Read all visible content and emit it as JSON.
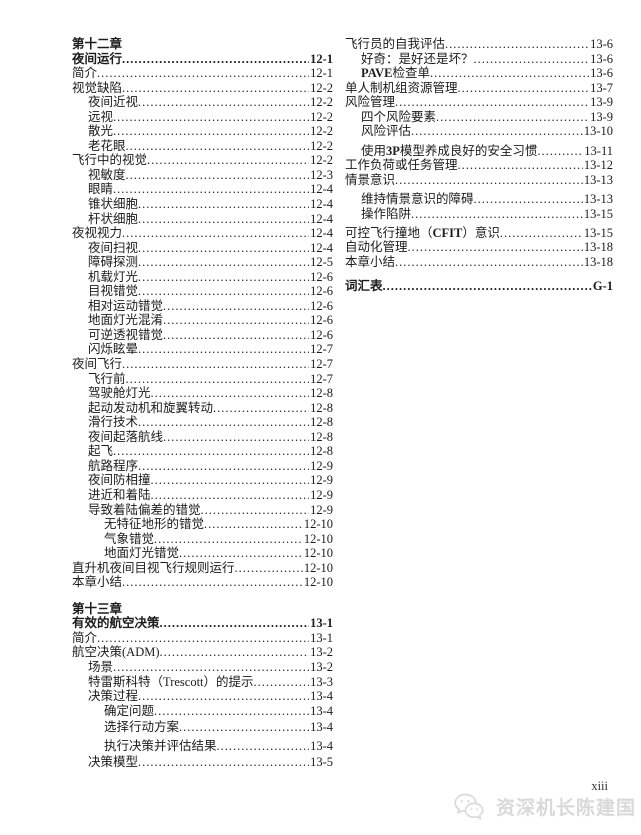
{
  "page": {
    "page_number": "xiii",
    "watermark": {
      "icon": "wechat-icon",
      "text": "资深机长陈建国"
    },
    "colors": {
      "text": "#1c1c1c",
      "watermark": "#d9d9d9",
      "background": "#ffffff"
    }
  },
  "toc": {
    "left_column": [
      {
        "chapter": "第十二章",
        "rows": [
          {
            "label": "夜间运行",
            "page": "12-1",
            "indent": 0,
            "bold": true
          },
          {
            "label": "简介",
            "page": "12-1",
            "indent": 0
          },
          {
            "label": "视觉缺陷",
            "page": "12-2",
            "indent": 0
          },
          {
            "label": "夜间近视",
            "page": "12-2",
            "indent": 1
          },
          {
            "label": "远视",
            "page": "12-2",
            "indent": 1
          },
          {
            "label": "散光",
            "page": "12-2",
            "indent": 1
          },
          {
            "label": "老花眼",
            "page": "12-2",
            "indent": 1
          },
          {
            "label": "飞行中的视觉",
            "page": "12-2",
            "indent": 0
          },
          {
            "label": "视敏度",
            "page": "12-3",
            "indent": 1
          },
          {
            "label": "眼睛",
            "page": "12-4",
            "indent": 1
          },
          {
            "label": "锥状细胞",
            "page": "12-4",
            "indent": 1
          },
          {
            "label": "杆状细胞",
            "page": "12-4",
            "indent": 1
          },
          {
            "label": "夜视视力",
            "page": "12-4",
            "indent": 0
          },
          {
            "label": "夜间扫视",
            "page": "12-4",
            "indent": 1
          },
          {
            "label": "障碍探测",
            "page": "12-5",
            "indent": 1
          },
          {
            "label": "机载灯光",
            "page": "12-6",
            "indent": 1
          },
          {
            "label": "目视错觉",
            "page": "12-6",
            "indent": 1
          },
          {
            "label": "相对运动错觉",
            "page": "12-6",
            "indent": 1
          },
          {
            "label": "地面灯光混淆",
            "page": "12-6",
            "indent": 1
          },
          {
            "label": "可逆透视错觉",
            "page": "12-6",
            "indent": 1
          },
          {
            "label": "闪烁眩晕",
            "page": "12-7",
            "indent": 1
          },
          {
            "label": "夜间飞行",
            "page": "12-7",
            "indent": 0
          },
          {
            "label": "飞行前",
            "page": "12-7",
            "indent": 1
          },
          {
            "label": "驾驶舱灯光",
            "page": "12-8",
            "indent": 1
          },
          {
            "label": "起动发动机和旋翼转动",
            "page": "12-8",
            "indent": 1
          },
          {
            "label": "滑行技术",
            "page": "12-8",
            "indent": 1
          },
          {
            "label": "夜间起落航线",
            "page": "12-8",
            "indent": 1
          },
          {
            "label": "起飞",
            "page": "12-8",
            "indent": 1
          },
          {
            "label": "航路程序",
            "page": "12-9",
            "indent": 1
          },
          {
            "label": "夜间防相撞",
            "page": "12-9",
            "indent": 1
          },
          {
            "label": "进近和着陆",
            "page": "12-9",
            "indent": 1
          },
          {
            "label": "导致着陆偏差的错觉",
            "page": "12-9",
            "indent": 1
          },
          {
            "label": "无特征地形的错觉",
            "page": "12-10",
            "indent": 2
          },
          {
            "label": "气象错觉",
            "page": "12-10",
            "indent": 2
          },
          {
            "label": "地面灯光错觉",
            "page": "12-10",
            "indent": 2
          },
          {
            "label": "直升机夜间目视飞行规则运行",
            "page": "12-10",
            "indent": 0
          },
          {
            "label": "本章小结",
            "page": "12-10",
            "indent": 0
          }
        ]
      },
      {
        "chapter": "第十三章",
        "rows": [
          {
            "label": "有效的航空决策",
            "page": "13-1",
            "indent": 0,
            "bold": true
          },
          {
            "label": "简介",
            "page": "13-1",
            "indent": 0
          },
          {
            "label": "航空决策(ADM)",
            "page": "13-2",
            "indent": 0
          },
          {
            "label": "场景",
            "page": "13-2",
            "indent": 1
          },
          {
            "label": "特雷斯科特（Trescott）的提示",
            "page": "13-3",
            "indent": 1
          },
          {
            "label": "决策过程",
            "page": "13-4",
            "indent": 1
          },
          {
            "label": "确定问题",
            "page": "13-4",
            "indent": 2
          },
          {
            "label": "选择行动方案",
            "page": "13-4",
            "indent": 2,
            "gap": 2
          },
          {
            "label": "执行决策并评估结果",
            "page": "13-4",
            "indent": 2,
            "gap": 4
          },
          {
            "label": "决策模型",
            "page": "13-5",
            "indent": 1,
            "gap": 2
          }
        ]
      }
    ],
    "right_column": [
      {
        "rows": [
          {
            "label": "飞行员的自我评估",
            "page": "13-6",
            "indent": 0
          },
          {
            "label": "好奇：是好还是坏？",
            "page": "13-6",
            "indent": 1
          },
          {
            "label": "PAVE检查单",
            "page": "13-6",
            "indent": 1,
            "bold_latin": true
          },
          {
            "label": "单人制机组资源管理",
            "page": "13-7",
            "indent": 0
          },
          {
            "label": "风险管理",
            "page": "13-9",
            "indent": 0
          },
          {
            "label": "四个风险要素",
            "page": "13-9",
            "indent": 1
          },
          {
            "label": "风险评估",
            "page": "13-10",
            "indent": 1
          },
          {
            "label": "使用3P模型养成良好的安全习惯",
            "page": "13-11",
            "indent": 1,
            "gap": 5,
            "bold_latin": true
          },
          {
            "label": "工作负荷或任务管理",
            "page": "13-12",
            "indent": 0
          },
          {
            "label": "情景意识",
            "page": "13-13",
            "indent": 0
          },
          {
            "label": "维持情景意识的障碍",
            "page": "13-13",
            "indent": 1,
            "gap": 5
          },
          {
            "label": "操作陷阱",
            "page": "13-15",
            "indent": 1
          },
          {
            "label": "可控飞行撞地（CFIT）意识",
            "page": "13-15",
            "indent": 0,
            "gap": 4,
            "bold_latin": true
          },
          {
            "label": "自动化管理",
            "page": "13-18",
            "indent": 0
          },
          {
            "label": "本章小结",
            "page": "13-18",
            "indent": 0
          },
          {
            "label": "词汇表",
            "page": "G-1",
            "indent": 0,
            "bold": true,
            "gap": 10
          }
        ]
      }
    ]
  }
}
